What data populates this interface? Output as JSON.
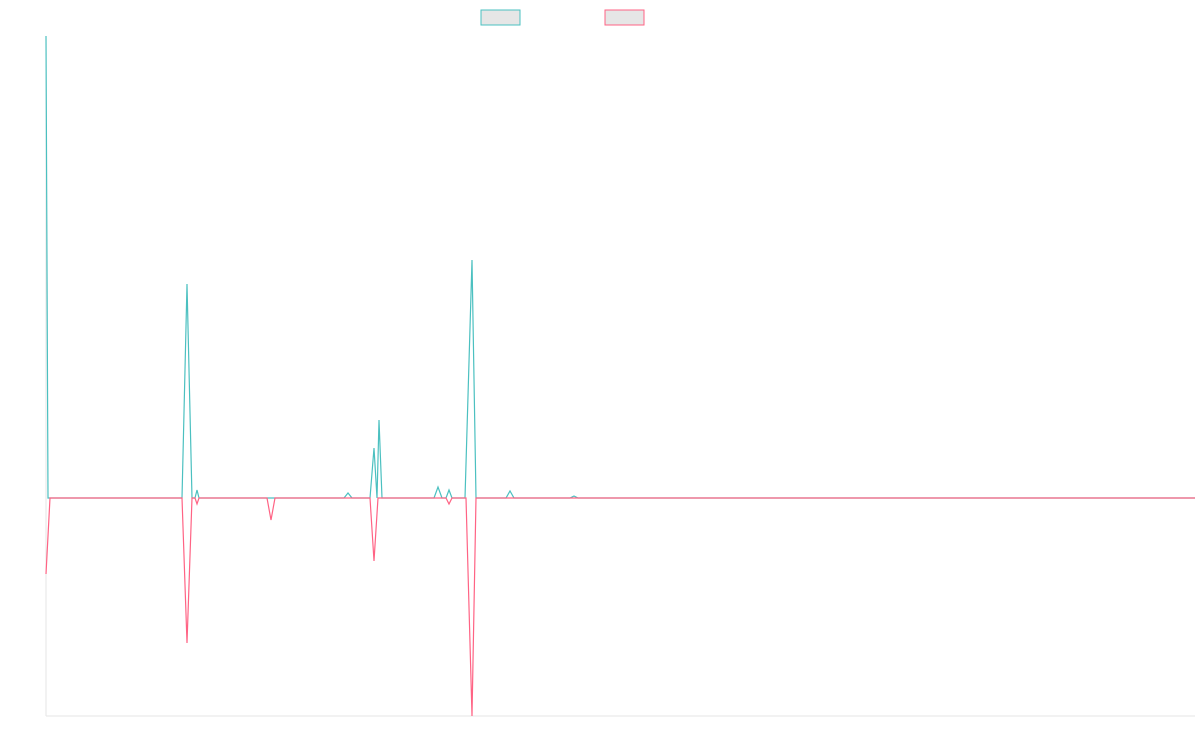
{
  "chart_data": {
    "type": "line",
    "xlim": [
      0,
      1149
    ],
    "ylim": [
      -218,
      462
    ],
    "series": [
      {
        "color": "#4bc0c0",
        "x": [
          0,
          2,
          136,
          141,
          146,
          149,
          151,
          153,
          298,
          302,
          306,
          324,
          328,
          331,
          333,
          336,
          388,
          392,
          396,
          400,
          403,
          406,
          419,
          426,
          430,
          460,
          464,
          468,
          524,
          528,
          532,
          1149
        ],
        "values": [
          462,
          0,
          0,
          214,
          0,
          0,
          8,
          0,
          0,
          5,
          0,
          0,
          50,
          0,
          78,
          0,
          0,
          11,
          0,
          0,
          8,
          0,
          0,
          238,
          0,
          0,
          7,
          0,
          0,
          2,
          0,
          0
        ]
      },
      {
        "color": "#ff6384",
        "x": [
          0,
          4,
          136,
          141,
          146,
          149,
          151,
          153,
          221,
          225,
          229,
          324,
          328,
          332,
          400,
          403,
          406,
          420,
          426,
          430,
          1149
        ],
        "values": [
          -76,
          0,
          0,
          -145,
          0,
          0,
          -6,
          0,
          0,
          -22,
          0,
          0,
          -63,
          0,
          0,
          -6,
          0,
          0,
          -218,
          0,
          0
        ]
      }
    ]
  }
}
